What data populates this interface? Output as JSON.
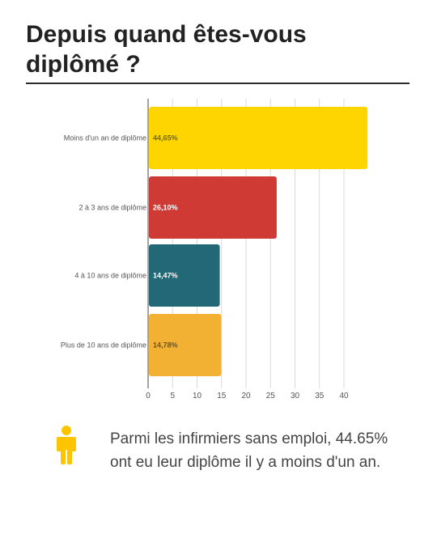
{
  "header": {
    "title": "Depuis quand êtes-vous diplômé ?"
  },
  "chart_data": {
    "type": "bar",
    "orientation": "horizontal",
    "categories": [
      "Moins d'un an de diplôme",
      "2 à 3 ans de diplôme",
      "4 à 10 ans de diplôme",
      "Plus de 10 ans de diplôme"
    ],
    "values": [
      44.65,
      26.1,
      14.47,
      14.78
    ],
    "value_labels": [
      "44,65%",
      "26,10%",
      "14,47%",
      "14,78%"
    ],
    "colors": [
      "#FFD500",
      "#D03A35",
      "#236877",
      "#F2B133"
    ],
    "value_label_colors": [
      "#7a6a00",
      "#ffffff",
      "#ffffff",
      "#6b5420"
    ],
    "xlim": [
      0,
      45
    ],
    "ticks": [
      0,
      5,
      10,
      15,
      20,
      25,
      30,
      35,
      40
    ],
    "tick_labels": [
      "0",
      "5",
      "10",
      "15",
      "20",
      "25",
      "30",
      "35",
      "40"
    ],
    "grid": true,
    "title": "",
    "xlabel": "",
    "ylabel": ""
  },
  "callout": {
    "icon": "person-icon",
    "icon_color": "#FFC400",
    "text": "Parmi les infirmiers sans emploi, 44.65% ont eu leur diplôme il y a moins d'un an."
  }
}
